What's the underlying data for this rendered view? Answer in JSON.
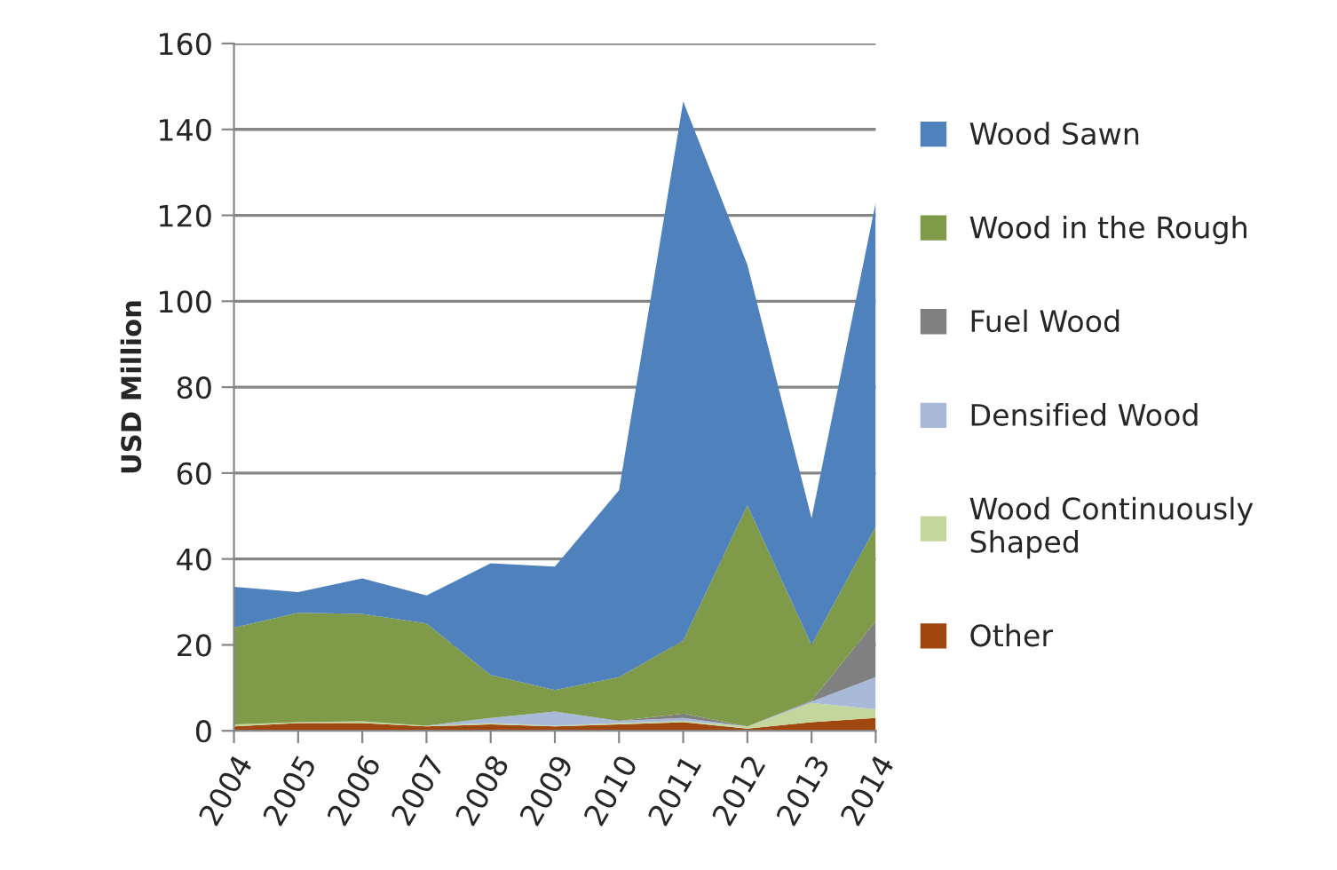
{
  "chart_data": {
    "type": "area",
    "stacked": true,
    "ylabel": "USD Million",
    "categories": [
      "2004",
      "2005",
      "2006",
      "2007",
      "2008",
      "2009",
      "2010",
      "2011",
      "2012",
      "2013",
      "2014"
    ],
    "series": [
      {
        "name": "Other",
        "color": "#a0460f",
        "values": [
          1,
          1.8,
          1.8,
          1,
          1.5,
          1,
          1.5,
          2,
          0.5,
          2,
          3
        ]
      },
      {
        "name": "Wood Continuously Shaped",
        "color": "#c3d69b",
        "values": [
          0.5,
          0.2,
          0.4,
          0.2,
          0.3,
          0.2,
          0.3,
          0.3,
          0.5,
          4.5,
          2
        ]
      },
      {
        "name": "Densified Wood",
        "color": "#a9b9d8",
        "values": [
          0,
          0,
          0,
          0,
          1.2,
          3.3,
          0.5,
          0.7,
          0,
          0.3,
          7.5
        ]
      },
      {
        "name": "Fuel Wood",
        "color": "#808080",
        "values": [
          0,
          0,
          0,
          0,
          0,
          0,
          0,
          1,
          0,
          0.2,
          13
        ]
      },
      {
        "name": "Wood in the Rough",
        "color": "#7f9b4a",
        "values": [
          22.5,
          25.5,
          25,
          23.8,
          10,
          5,
          10.2,
          17,
          51.5,
          13,
          22
        ]
      },
      {
        "name": "Wood Sawn",
        "color": "#4f81bd",
        "values": [
          9.5,
          4.8,
          8.3,
          6.5,
          26,
          28.7,
          43.5,
          125.5,
          56,
          29.5,
          75.5
        ]
      }
    ],
    "ylim": [
      0,
      160
    ],
    "yticks": [
      0,
      20,
      40,
      60,
      80,
      100,
      120,
      140,
      160
    ],
    "grid": "y",
    "legend": "right"
  }
}
